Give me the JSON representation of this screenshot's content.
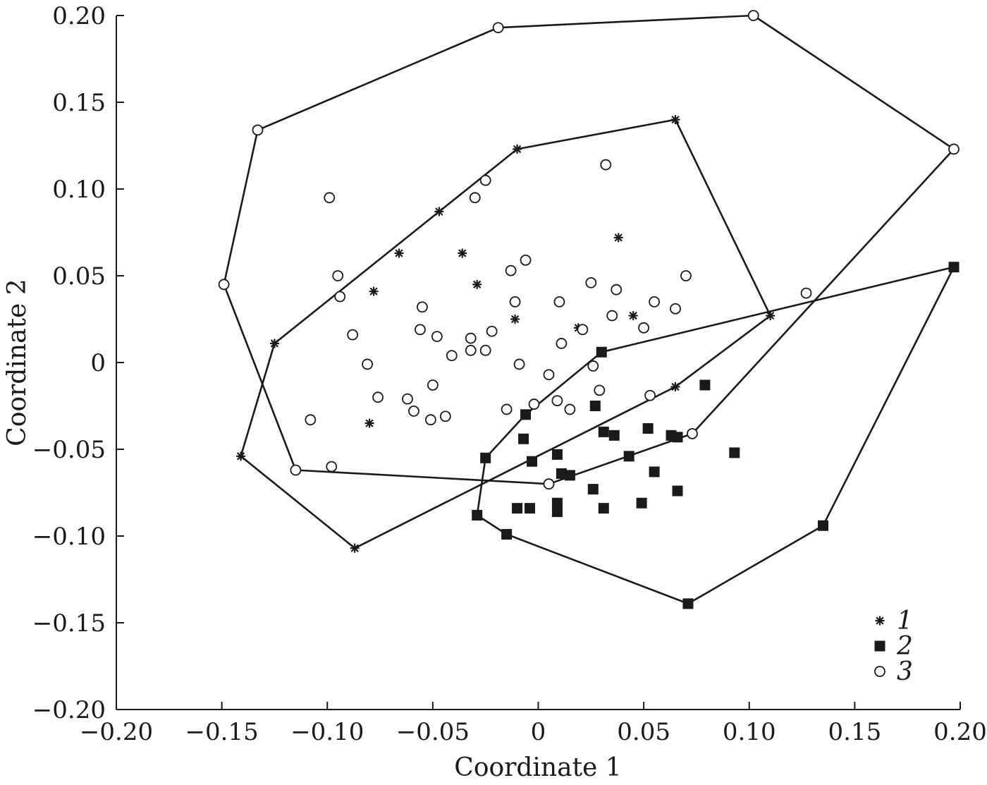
{
  "chart_data": {
    "type": "scatter",
    "xlabel": "Coordinate 1",
    "ylabel": "Coordinate 2",
    "xlim": [
      -0.2,
      0.2
    ],
    "ylim": [
      -0.2,
      0.2
    ],
    "xticks": [
      "−0.20",
      "−0.15",
      "−0.10",
      "−0.05",
      "0",
      "0.05",
      "0.10",
      "0.15",
      "0.20"
    ],
    "yticks": [
      "0.20",
      "0.15",
      "0.10",
      "0.05",
      "0",
      "−0.05",
      "−0.10",
      "−0.15",
      "−0.20"
    ],
    "xtick_values": [
      -0.2,
      -0.15,
      -0.1,
      -0.05,
      0,
      0.05,
      0.1,
      0.15,
      0.2
    ],
    "ytick_values": [
      0.2,
      0.15,
      0.1,
      0.05,
      0,
      -0.05,
      -0.1,
      -0.15,
      -0.2
    ],
    "grid": false,
    "legend_position": "bottom-right",
    "series": [
      {
        "name": "1",
        "marker": "star",
        "hull": [
          [
            -0.01,
            0.123
          ],
          [
            0.065,
            0.14
          ],
          [
            0.11,
            0.027
          ],
          [
            0.065,
            -0.014
          ],
          [
            -0.087,
            -0.107
          ],
          [
            -0.141,
            -0.054
          ],
          [
            -0.125,
            0.011
          ],
          [
            -0.047,
            0.087
          ]
        ],
        "points": [
          [
            -0.01,
            0.123
          ],
          [
            0.065,
            0.14
          ],
          [
            0.11,
            0.027
          ],
          [
            0.065,
            -0.014
          ],
          [
            -0.087,
            -0.107
          ],
          [
            -0.141,
            -0.054
          ],
          [
            -0.125,
            0.011
          ],
          [
            -0.047,
            0.087
          ],
          [
            -0.066,
            0.063
          ],
          [
            -0.036,
            0.063
          ],
          [
            -0.078,
            0.041
          ],
          [
            -0.029,
            0.045
          ],
          [
            -0.011,
            0.025
          ],
          [
            0.019,
            0.02
          ],
          [
            0.038,
            0.072
          ],
          [
            0.045,
            0.027
          ],
          [
            -0.08,
            -0.035
          ]
        ]
      },
      {
        "name": "2",
        "marker": "square",
        "hull": [
          [
            0.03,
            0.006
          ],
          [
            0.197,
            0.055
          ],
          [
            0.135,
            -0.094
          ],
          [
            0.071,
            -0.139
          ],
          [
            -0.015,
            -0.099
          ],
          [
            -0.029,
            -0.088
          ],
          [
            -0.025,
            -0.055
          ],
          [
            -0.006,
            -0.03
          ]
        ],
        "points": [
          [
            0.03,
            0.006
          ],
          [
            0.197,
            0.055
          ],
          [
            0.135,
            -0.094
          ],
          [
            0.071,
            -0.139
          ],
          [
            -0.015,
            -0.099
          ],
          [
            -0.029,
            -0.088
          ],
          [
            -0.025,
            -0.055
          ],
          [
            -0.006,
            -0.03
          ],
          [
            -0.007,
            -0.044
          ],
          [
            -0.003,
            -0.057
          ],
          [
            0.009,
            -0.053
          ],
          [
            0.011,
            -0.064
          ],
          [
            0.015,
            -0.065
          ],
          [
            0.027,
            -0.025
          ],
          [
            0.031,
            -0.04
          ],
          [
            0.036,
            -0.042
          ],
          [
            0.052,
            -0.038
          ],
          [
            0.063,
            -0.042
          ],
          [
            0.066,
            -0.043
          ],
          [
            0.079,
            -0.013
          ],
          [
            0.093,
            -0.052
          ],
          [
            0.043,
            -0.054
          ],
          [
            0.055,
            -0.063
          ],
          [
            0.026,
            -0.073
          ],
          [
            0.049,
            -0.081
          ],
          [
            0.066,
            -0.074
          ],
          [
            0.031,
            -0.084
          ],
          [
            0.009,
            -0.081
          ],
          [
            0.009,
            -0.086
          ],
          [
            -0.004,
            -0.084
          ],
          [
            -0.01,
            -0.084
          ]
        ]
      },
      {
        "name": "3",
        "marker": "circle",
        "hull": [
          [
            -0.019,
            0.193
          ],
          [
            0.102,
            0.2
          ],
          [
            0.197,
            0.123
          ],
          [
            0.073,
            -0.041
          ],
          [
            0.005,
            -0.07
          ],
          [
            -0.115,
            -0.062
          ],
          [
            -0.149,
            0.045
          ],
          [
            -0.133,
            0.134
          ]
        ],
        "points": [
          [
            -0.019,
            0.193
          ],
          [
            0.102,
            0.2
          ],
          [
            0.197,
            0.123
          ],
          [
            0.073,
            -0.041
          ],
          [
            0.005,
            -0.07
          ],
          [
            -0.115,
            -0.062
          ],
          [
            -0.149,
            0.045
          ],
          [
            -0.133,
            0.134
          ],
          [
            -0.099,
            0.095
          ],
          [
            -0.03,
            0.095
          ],
          [
            -0.025,
            0.105
          ],
          [
            0.032,
            0.114
          ],
          [
            -0.095,
            0.05
          ],
          [
            -0.094,
            0.038
          ],
          [
            -0.013,
            0.053
          ],
          [
            -0.006,
            0.059
          ],
          [
            0.025,
            0.046
          ],
          [
            0.037,
            0.042
          ],
          [
            0.07,
            0.05
          ],
          [
            0.127,
            0.04
          ],
          [
            -0.055,
            0.032
          ],
          [
            -0.011,
            0.035
          ],
          [
            0.01,
            0.035
          ],
          [
            0.035,
            0.027
          ],
          [
            0.055,
            0.035
          ],
          [
            0.065,
            0.031
          ],
          [
            -0.056,
            0.019
          ],
          [
            -0.048,
            0.015
          ],
          [
            -0.088,
            0.016
          ],
          [
            -0.032,
            0.014
          ],
          [
            -0.022,
            0.018
          ],
          [
            0.021,
            0.019
          ],
          [
            0.05,
            0.02
          ],
          [
            0.011,
            0.011
          ],
          [
            -0.032,
            0.007
          ],
          [
            -0.025,
            0.007
          ],
          [
            -0.041,
            0.004
          ],
          [
            -0.081,
            -0.001
          ],
          [
            -0.009,
            -0.001
          ],
          [
            0.026,
            -0.002
          ],
          [
            0.005,
            -0.007
          ],
          [
            -0.05,
            -0.013
          ],
          [
            0.029,
            -0.016
          ],
          [
            -0.076,
            -0.02
          ],
          [
            -0.062,
            -0.021
          ],
          [
            0.053,
            -0.019
          ],
          [
            0.009,
            -0.022
          ],
          [
            -0.002,
            -0.024
          ],
          [
            -0.015,
            -0.027
          ],
          [
            0.015,
            -0.027
          ],
          [
            -0.059,
            -0.028
          ],
          [
            -0.044,
            -0.031
          ],
          [
            -0.051,
            -0.033
          ],
          [
            -0.108,
            -0.033
          ],
          [
            -0.098,
            -0.06
          ]
        ]
      }
    ]
  }
}
